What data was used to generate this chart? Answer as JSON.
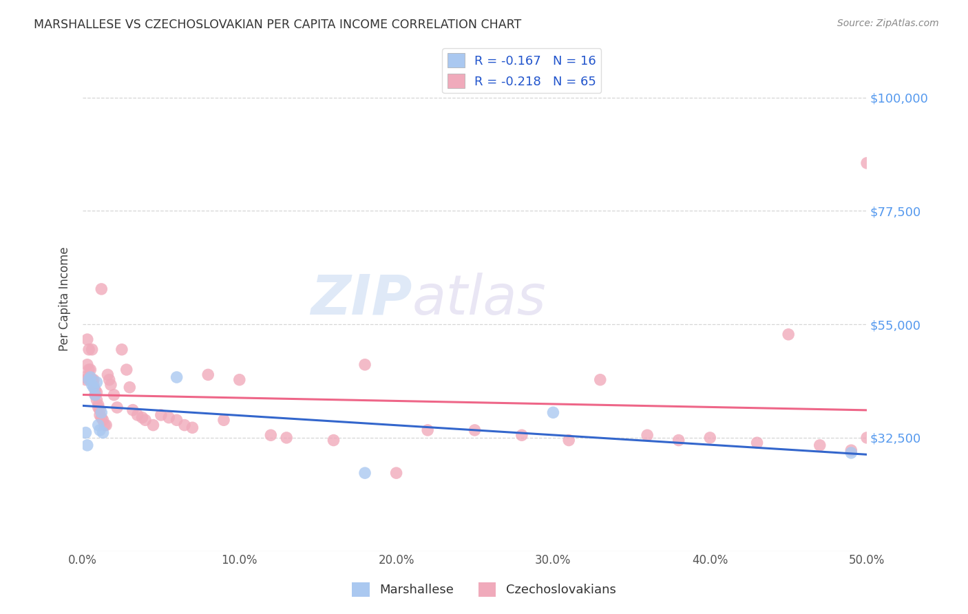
{
  "title": "MARSHALLESE VS CZECHOSLOVAKIAN PER CAPITA INCOME CORRELATION CHART",
  "source": "Source: ZipAtlas.com",
  "ylabel": "Per Capita Income",
  "xlim": [
    0.0,
    0.5
  ],
  "ylim": [
    10000,
    110000
  ],
  "yticks": [
    32500,
    55000,
    77500,
    100000
  ],
  "ytick_labels": [
    "$32,500",
    "$55,000",
    "$77,500",
    "$100,000"
  ],
  "xtick_labels": [
    "0.0%",
    "10.0%",
    "20.0%",
    "30.0%",
    "40.0%",
    "50.0%"
  ],
  "xticks": [
    0.0,
    0.1,
    0.2,
    0.3,
    0.4,
    0.5
  ],
  "background_color": "#ffffff",
  "grid_color": "#cccccc",
  "title_color": "#333333",
  "legend_R_color": "#2255cc",
  "ytick_color": "#5599ee",
  "xtick_color": "#555555",
  "marshallese_color": "#aac8f0",
  "czechoslovakian_color": "#f0aabb",
  "marshallese_line_color": "#3366cc",
  "czechoslovakian_line_color": "#ee6688",
  "marshallese_R": -0.167,
  "marshallese_N": 16,
  "czechoslovakian_R": -0.218,
  "czechoslovakian_N": 65,
  "watermark_zip": "ZIP",
  "watermark_atlas": "atlas",
  "marshallese_x": [
    0.002,
    0.003,
    0.004,
    0.005,
    0.006,
    0.007,
    0.008,
    0.009,
    0.01,
    0.011,
    0.012,
    0.013,
    0.06,
    0.18,
    0.3,
    0.49
  ],
  "marshallese_y": [
    33500,
    31000,
    44000,
    44500,
    43000,
    42500,
    41000,
    43500,
    35000,
    34000,
    37500,
    33500,
    44500,
    25500,
    37500,
    29500
  ],
  "czechoslovakian_x": [
    0.001,
    0.002,
    0.003,
    0.003,
    0.004,
    0.004,
    0.005,
    0.005,
    0.006,
    0.006,
    0.007,
    0.007,
    0.008,
    0.008,
    0.009,
    0.009,
    0.01,
    0.01,
    0.011,
    0.011,
    0.012,
    0.012,
    0.013,
    0.014,
    0.015,
    0.016,
    0.017,
    0.018,
    0.02,
    0.022,
    0.025,
    0.028,
    0.03,
    0.032,
    0.035,
    0.038,
    0.04,
    0.045,
    0.05,
    0.055,
    0.06,
    0.065,
    0.07,
    0.08,
    0.09,
    0.1,
    0.12,
    0.13,
    0.16,
    0.18,
    0.2,
    0.22,
    0.25,
    0.28,
    0.31,
    0.33,
    0.36,
    0.38,
    0.4,
    0.43,
    0.45,
    0.47,
    0.49,
    0.5,
    0.5
  ],
  "czechoslovakian_y": [
    44500,
    44000,
    52000,
    47000,
    46000,
    50000,
    46000,
    44000,
    50000,
    44000,
    44000,
    43000,
    42000,
    41000,
    41500,
    40000,
    39000,
    38500,
    38000,
    37000,
    36500,
    62000,
    36000,
    35000,
    35000,
    45000,
    44000,
    43000,
    41000,
    38500,
    50000,
    46000,
    42500,
    38000,
    37000,
    36500,
    36000,
    35000,
    37000,
    36500,
    36000,
    35000,
    34500,
    45000,
    36000,
    44000,
    33000,
    32500,
    32000,
    47000,
    25500,
    34000,
    34000,
    33000,
    32000,
    44000,
    33000,
    32000,
    32500,
    31500,
    53000,
    31000,
    30000,
    32500,
    87000
  ]
}
